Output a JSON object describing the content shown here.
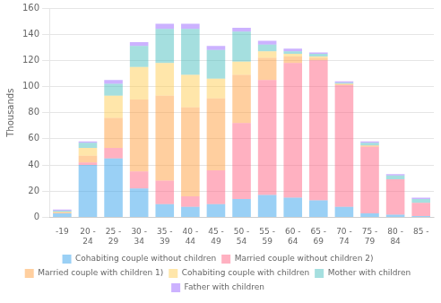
{
  "chart_data": {
    "type": "bar",
    "stacked": true,
    "grid": true,
    "legend": "bottom",
    "ylabel": "Thousands",
    "categories": [
      "-19",
      "20 -\n24",
      "25 -\n29",
      "30 -\n34",
      "35 -\n39",
      "40 -\n44",
      "45 -\n49",
      "50 -\n54",
      "55 -\n59",
      "60 -\n64",
      "65 -\n69",
      "70 -\n74",
      "75 -\n79",
      "80 -\n84",
      "85 -"
    ],
    "series": [
      {
        "name": "Cohabiting couple without children",
        "values": [
          3,
          40,
          45,
          22,
          10,
          8,
          10,
          14,
          17,
          15,
          13,
          8,
          3,
          2,
          1
        ]
      },
      {
        "name": "Married couple without children 2)",
        "values": [
          0,
          2,
          8,
          13,
          18,
          8,
          26,
          58,
          88,
          103,
          107,
          93,
          51,
          27,
          10
        ]
      },
      {
        "name": "Married couple with children 1)",
        "values": [
          1,
          5,
          23,
          55,
          65,
          68,
          55,
          37,
          17,
          5,
          2,
          1,
          1,
          0,
          0
        ]
      },
      {
        "name": "Cohabiting couple with children",
        "values": [
          0,
          6,
          17,
          25,
          25,
          25,
          15,
          10,
          5,
          2,
          1,
          0,
          0,
          0,
          0
        ]
      },
      {
        "name": "Mother with children",
        "values": [
          1,
          4,
          9,
          16,
          26,
          35,
          22,
          23,
          5,
          2,
          2,
          1,
          2,
          3,
          3
        ]
      },
      {
        "name": "Father with children",
        "values": [
          1,
          1,
          3,
          3,
          4,
          4,
          3,
          3,
          3,
          2,
          1,
          1,
          1,
          1,
          1
        ]
      }
    ],
    "ylim": [
      0,
      160
    ],
    "yticks": [
      0,
      20,
      40,
      60,
      80,
      100,
      120,
      140,
      160
    ]
  }
}
